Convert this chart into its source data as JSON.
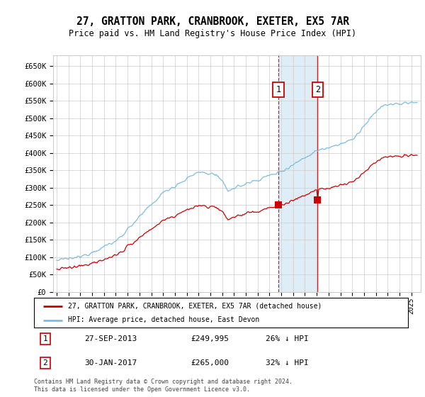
{
  "title": "27, GRATTON PARK, CRANBROOK, EXETER, EX5 7AR",
  "subtitle": "Price paid vs. HM Land Registry's House Price Index (HPI)",
  "ylabel_ticks": [
    "£0",
    "£50K",
    "£100K",
    "£150K",
    "£200K",
    "£250K",
    "£300K",
    "£350K",
    "£400K",
    "£450K",
    "£500K",
    "£550K",
    "£600K",
    "£650K"
  ],
  "ytick_values": [
    0,
    50000,
    100000,
    150000,
    200000,
    250000,
    300000,
    350000,
    400000,
    450000,
    500000,
    550000,
    600000,
    650000
  ],
  "ylim": [
    0,
    680000
  ],
  "xlim_start": 1994.7,
  "xlim_end": 2025.8,
  "hpi_color": "#7bbde0",
  "price_color": "#cc0000",
  "transaction1_date": 2013.75,
  "transaction1_price": 249995,
  "transaction2_date": 2017.08,
  "transaction2_price": 265000,
  "legend_house_label": "27, GRATTON PARK, CRANBROOK, EXETER, EX5 7AR (detached house)",
  "legend_hpi_label": "HPI: Average price, detached house, East Devon",
  "footnote1": "Contains HM Land Registry data © Crown copyright and database right 2024.",
  "footnote2": "This data is licensed under the Open Government Licence v3.0.",
  "table_row1": [
    "1",
    "27-SEP-2013",
    "£249,995",
    "26% ↓ HPI"
  ],
  "table_row2": [
    "2",
    "30-JAN-2017",
    "£265,000",
    "32% ↓ HPI"
  ],
  "background_color": "#ffffff",
  "grid_color": "#cccccc",
  "shaded_region_color": "#daeaf5"
}
